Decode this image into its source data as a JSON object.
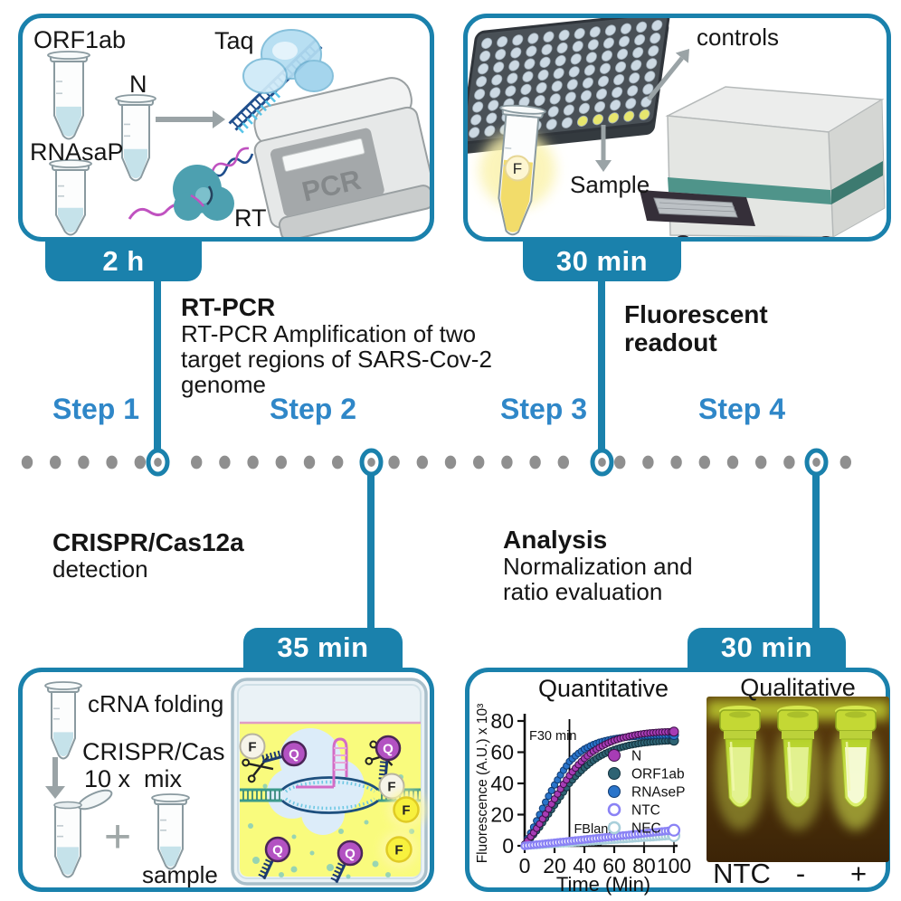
{
  "colors": {
    "accent_teal": "#1a81ac",
    "step_blue": "#2f87c8",
    "dot_gray": "#8f8f8f",
    "quencher_purple": "#b352c2",
    "fluorophore_yellow": "#f8f13e"
  },
  "icons": {
    "arrow": "gray-triangle-arrow",
    "scissors": "crossed-blades-glyph",
    "quencher": "purple-circle-Q-with-ssDNA-comb",
    "fluorophore": "yellow-circle-F",
    "timeline_dot": "gray-ellipse",
    "timeline_marker": "teal-ring"
  },
  "panels": {
    "step1": {
      "badge": "2 h",
      "orf1ab_label": "ORF1ab",
      "n_label": "N",
      "rnasap_label": "RNAsaP",
      "taq_label": "Taq",
      "rt_label": "RT",
      "pcr_label": "PCR"
    },
    "step2": {
      "badge": "35 min",
      "crna_label": "cRNA folding",
      "crispr_label": "CRISPR/Cas",
      "mix_label": "10 x  mix",
      "plus": "+",
      "sample_label": "sample",
      "fluorophore_label": "F",
      "quencher_label": "Q"
    },
    "step3": {
      "badge": "30 min",
      "controls_label": "controls",
      "sample_label": "Sample",
      "fluorophore_label": "F"
    },
    "step4": {
      "badge": "30 min",
      "qualitative_title": "Qualitative",
      "tube_labels": [
        "NTC",
        "-",
        "+"
      ]
    }
  },
  "middle": {
    "steps": [
      "Step 1",
      "Step 2",
      "Step 3",
      "Step 4"
    ],
    "rtpcr_title": "RT-PCR",
    "rtpcr_lines": [
      "RT-PCR Amplification of two",
      "target regions of SARS-Cov-2",
      "genome"
    ],
    "fluorescent_lines": [
      "Fluorescent",
      "readout"
    ],
    "crispr_title": "CRISPR/Cas12a",
    "crispr_sub": "detection",
    "analysis_title": "Analysis",
    "analysis_lines": [
      "Normalization and",
      "ratio evaluation"
    ]
  },
  "chart_data": {
    "type": "line",
    "title": "Quantitative",
    "xlabel": "Time (Min)",
    "ylabel": "Fluorescence (A.U.) x 10³",
    "xlim": [
      0,
      100
    ],
    "ylim": [
      0,
      80
    ],
    "xticks": [
      0,
      20,
      40,
      60,
      80,
      100
    ],
    "yticks": [
      0,
      20,
      40,
      60,
      80
    ],
    "grid": false,
    "legend_position": "inside-right",
    "vline": {
      "x": 30,
      "label": "F30 min"
    },
    "annotation": "FBlank",
    "x_values": [
      0,
      5,
      10,
      15,
      20,
      25,
      30,
      35,
      40,
      45,
      50,
      55,
      60,
      65,
      70,
      75,
      80,
      85,
      90,
      95,
      100
    ],
    "series": [
      {
        "name": "N",
        "color": "#a73cb5",
        "edge": "#3c1048",
        "marker": "filled",
        "y": [
          1,
          7,
          14,
          22,
          30,
          38,
          45,
          51,
          56,
          60,
          63,
          65.5,
          67.5,
          69,
          70.2,
          71.2,
          71.9,
          72.4,
          72.8,
          73,
          73.2
        ]
      },
      {
        "name": "ORF1ab",
        "color": "#2e6373",
        "edge": "#12303c",
        "marker": "filled",
        "y": [
          1,
          6,
          12,
          19,
          26,
          33,
          40,
          45.5,
          50,
          54,
          57.2,
          59.7,
          61.7,
          63.2,
          64.4,
          65.3,
          66,
          66.5,
          66.9,
          67.2,
          67.4
        ]
      },
      {
        "name": "RNAseP",
        "color": "#2a74ca",
        "edge": "#0f3a70",
        "marker": "filled",
        "y": [
          1,
          10,
          20,
          30,
          39,
          47,
          54,
          58.5,
          62,
          64.5,
          66.3,
          67.6,
          68.6,
          69.3,
          69.8,
          70.2,
          70.5,
          70.7,
          70.9,
          71,
          71
        ]
      },
      {
        "name": "NTC",
        "color": "#8a82f5",
        "edge": "#8a82f5",
        "marker": "open",
        "y": [
          0,
          0.5,
          1,
          1.5,
          2,
          2.5,
          3,
          3.5,
          4,
          4.5,
          5,
          5.5,
          6,
          6.5,
          7,
          7.5,
          8,
          8.5,
          9,
          9.5,
          10
        ]
      },
      {
        "name": "NEC",
        "color": "#a9cfdb",
        "edge": "#a9cfdb",
        "marker": "open",
        "y": [
          0,
          0.3,
          0.65,
          1,
          1.3,
          1.6,
          1.95,
          2.3,
          2.6,
          2.9,
          3.25,
          3.6,
          3.9,
          4.2,
          4.55,
          4.9,
          5.2,
          5.5,
          5.85,
          6.2,
          6.5
        ]
      }
    ]
  }
}
